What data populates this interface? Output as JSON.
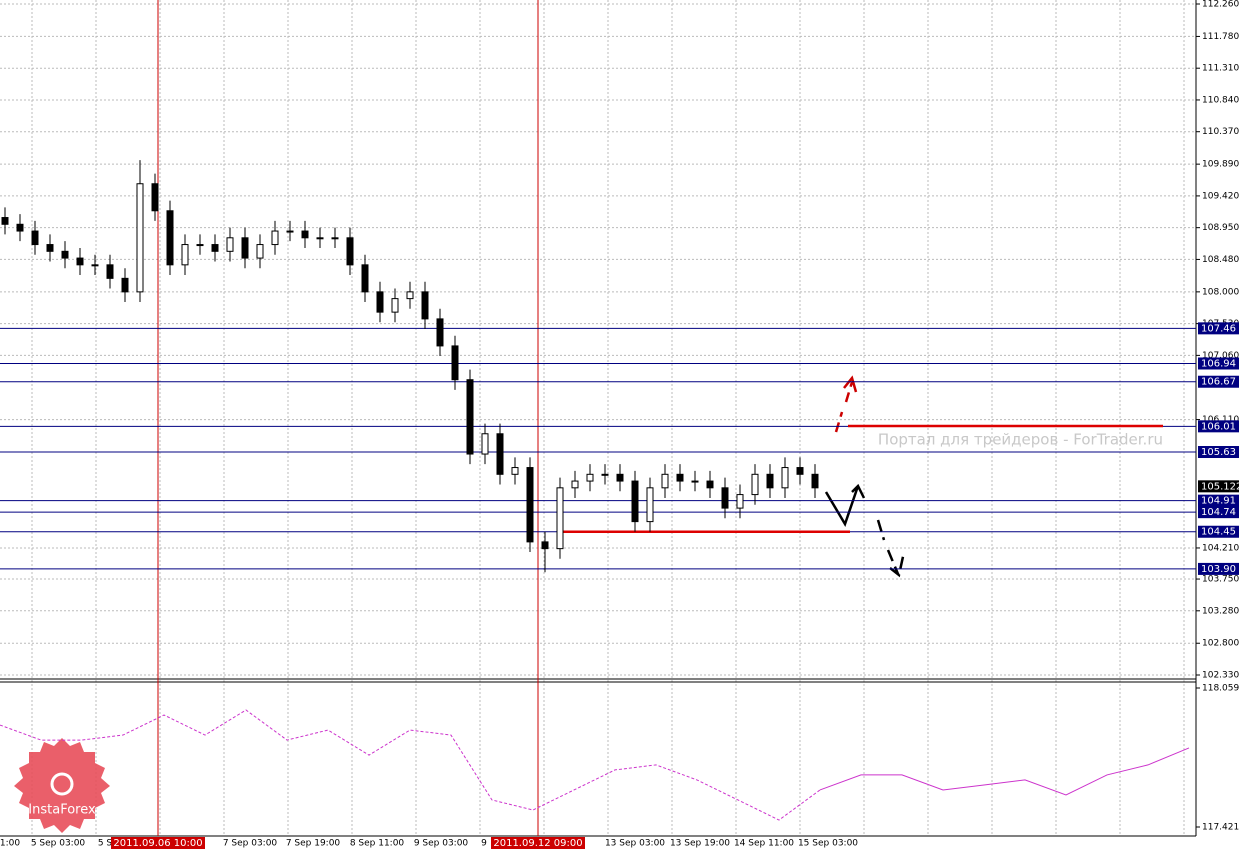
{
  "chart_data": {
    "type": "candlestick",
    "open": [
      109.1,
      109.0,
      108.9,
      108.7,
      108.6,
      108.5,
      108.4,
      108.4,
      108.2,
      108.0,
      109.6,
      109.2,
      108.4,
      108.7,
      108.7,
      108.6,
      108.8,
      108.5,
      108.7,
      108.9,
      108.9,
      108.8,
      108.8,
      108.8,
      108.4,
      108.0,
      107.7,
      107.9,
      108.0,
      107.6,
      107.2,
      106.7,
      105.6,
      105.9,
      105.3,
      105.4,
      104.3,
      104.2,
      105.1,
      105.2,
      105.3,
      105.3,
      105.2,
      104.6,
      105.1,
      105.3,
      105.2,
      105.2,
      105.1,
      104.8,
      105.0,
      105.3,
      105.1,
      105.4,
      105.3
    ],
    "high": [
      109.25,
      109.15,
      109.05,
      108.85,
      108.75,
      108.65,
      108.55,
      108.55,
      108.35,
      109.95,
      109.75,
      109.35,
      108.85,
      108.85,
      108.85,
      108.95,
      108.95,
      108.85,
      109.05,
      109.05,
      109.05,
      108.95,
      108.95,
      108.95,
      108.55,
      108.15,
      108.05,
      108.15,
      108.15,
      107.75,
      107.35,
      106.85,
      106.05,
      106.05,
      105.55,
      105.55,
      104.45,
      105.25,
      105.35,
      105.45,
      105.45,
      105.45,
      105.35,
      105.25,
      105.45,
      105.45,
      105.35,
      105.35,
      105.25,
      105.15,
      105.45,
      105.45,
      105.55,
      105.55,
      105.45
    ],
    "low": [
      108.85,
      108.75,
      108.55,
      108.45,
      108.35,
      108.25,
      108.25,
      108.05,
      107.85,
      107.85,
      109.05,
      108.25,
      108.25,
      108.55,
      108.45,
      108.45,
      108.35,
      108.35,
      108.55,
      108.75,
      108.65,
      108.65,
      108.65,
      108.25,
      107.85,
      107.55,
      107.55,
      107.75,
      107.45,
      107.05,
      106.55,
      105.45,
      105.45,
      105.15,
      105.15,
      104.15,
      103.85,
      104.05,
      104.95,
      105.05,
      105.15,
      105.05,
      104.45,
      104.45,
      104.95,
      105.05,
      105.05,
      104.95,
      104.65,
      104.65,
      104.85,
      104.95,
      104.95,
      105.15,
      104.95
    ],
    "close": [
      109.0,
      108.9,
      108.7,
      108.6,
      108.5,
      108.4,
      108.4,
      108.2,
      108.0,
      109.6,
      109.2,
      108.4,
      108.7,
      108.7,
      108.6,
      108.8,
      108.5,
      108.7,
      108.9,
      108.9,
      108.8,
      108.8,
      108.8,
      108.4,
      108.0,
      107.7,
      107.9,
      108.0,
      107.6,
      107.2,
      106.7,
      105.6,
      105.9,
      105.3,
      105.4,
      104.3,
      104.2,
      105.1,
      105.2,
      105.3,
      105.3,
      105.2,
      104.6,
      105.1,
      105.3,
      105.2,
      105.2,
      105.1,
      104.8,
      105.0,
      105.3,
      105.1,
      105.4,
      105.3,
      105.1
    ],
    "ylim": [
      102.33,
      112.26
    ],
    "yticks": [
      {
        "value": 112.26,
        "label": "112.260"
      },
      {
        "value": 111.78,
        "label": "111.780"
      },
      {
        "value": 111.31,
        "label": "111.310"
      },
      {
        "value": 110.84,
        "label": "110.840"
      },
      {
        "value": 110.37,
        "label": "110.370"
      },
      {
        "value": 109.89,
        "label": "109.890"
      },
      {
        "value": 109.42,
        "label": "109.420"
      },
      {
        "value": 108.95,
        "label": "108.950"
      },
      {
        "value": 108.48,
        "label": "108.480"
      },
      {
        "value": 108.0,
        "label": "108.000"
      },
      {
        "value": 107.53,
        "label": "107.530"
      },
      {
        "value": 107.06,
        "label": "107.060"
      },
      {
        "value": 106.11,
        "label": "106.110"
      },
      {
        "value": 104.21,
        "label": "104.210"
      },
      {
        "value": 103.75,
        "label": "103.750"
      },
      {
        "value": 103.28,
        "label": "103.280"
      },
      {
        "value": 102.8,
        "label": "102.800"
      },
      {
        "value": 102.33,
        "label": "102.330"
      }
    ],
    "levels": [
      {
        "value": 107.46,
        "label": "107.46"
      },
      {
        "value": 106.94,
        "label": "106.94"
      },
      {
        "value": 106.67,
        "label": "106.67"
      },
      {
        "value": 106.01,
        "label": "106.01"
      },
      {
        "value": 105.63,
        "label": "105.63"
      },
      {
        "value": 104.91,
        "label": "104.91"
      },
      {
        "value": 104.74,
        "label": "104.74"
      },
      {
        "value": 104.45,
        "label": "104.45"
      },
      {
        "value": 103.9,
        "label": "103.90"
      }
    ],
    "current_price": {
      "value": 105.122,
      "label": "105.122"
    },
    "red_lines": [
      106.015,
      104.45
    ],
    "time_labels": [
      "1:00",
      "5 Sep 03:00",
      "5 S",
      "7 Sep 03:00",
      "7 Sep 19:00",
      "8 Sep 11:00",
      "9 Sep 03:00",
      "9",
      "13 Sep 03:00",
      "13 Sep 19:00",
      "14 Sep 11:00",
      "15 Sep 03:00"
    ],
    "highlighted_times": [
      "2011.09.06 10:00",
      "2011.09.12 09:00"
    ],
    "watermark": "Портал для трейдеров - ForTrader.ru",
    "logo": "InstaForex",
    "indicator": {
      "color": "#cc33cc",
      "ylim": [
        117.421,
        118.059
      ],
      "yticks": [
        {
          "value": 118.059,
          "label": "118.059"
        },
        {
          "value": 117.421,
          "label": "117.421"
        }
      ],
      "dashed_values": [
        117.889,
        117.82,
        117.82,
        117.843,
        117.935,
        117.843,
        117.958,
        117.82,
        117.866,
        117.751,
        117.866,
        117.843,
        117.545,
        117.499,
        117.591,
        117.683,
        117.706,
        117.637,
        117.545,
        117.453,
        117.591
      ],
      "solid_values": [
        117.591,
        117.66,
        117.66,
        117.591,
        117.614,
        117.637,
        117.568,
        117.66,
        117.706,
        117.784
      ]
    }
  }
}
